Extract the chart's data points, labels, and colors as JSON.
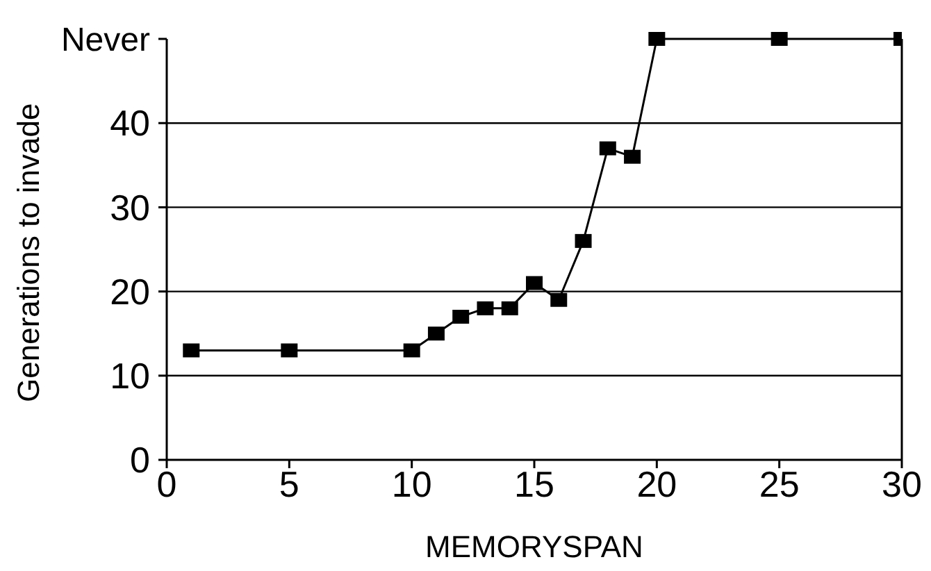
{
  "chart_data": {
    "type": "line",
    "xlabel": "MEMORYSPAN",
    "ylabel": "Generations to invade",
    "x": [
      1,
      5,
      10,
      11,
      12,
      13,
      14,
      15,
      16,
      17,
      18,
      19,
      20,
      25,
      30
    ],
    "series": [
      {
        "color": "#000000",
        "values": [
          13,
          13,
          13,
          15,
          17,
          18,
          18,
          21,
          19,
          26,
          37,
          36,
          50,
          50,
          50
        ]
      }
    ],
    "xlim": [
      0,
      30
    ],
    "xticks": [
      0,
      5,
      10,
      15,
      20,
      25,
      30
    ],
    "ylim": [
      0,
      50
    ],
    "yticks": [
      0,
      10,
      20,
      30,
      40,
      {
        "value": 50,
        "label": "Never"
      }
    ],
    "grid": "y",
    "marker": "square",
    "legend": false
  }
}
